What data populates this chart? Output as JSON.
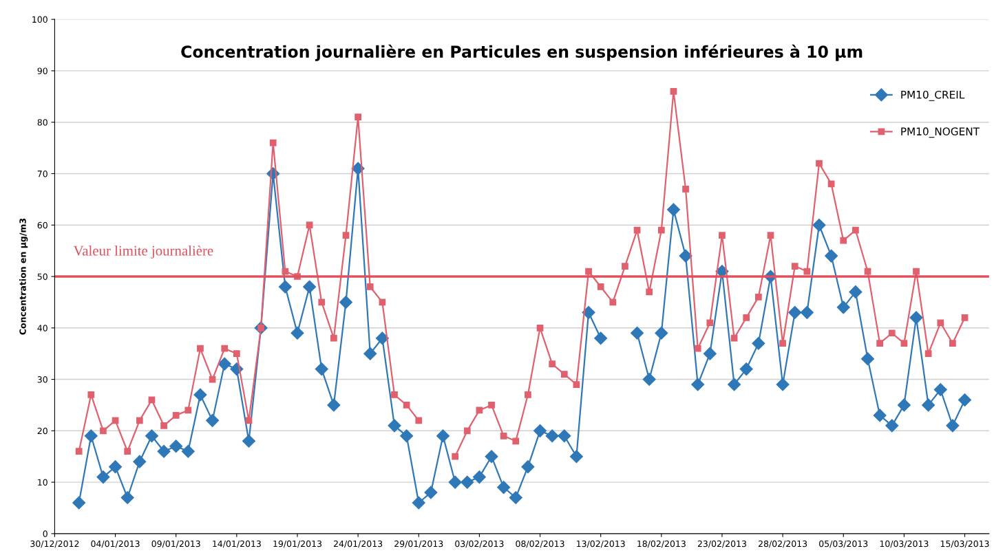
{
  "chart_data": {
    "type": "line",
    "title": "Concentration journalière en Particules en suspension inférieures à 10 µm",
    "ylabel": "Concentration en µg/m3",
    "x": [
      "2013-01-01",
      "2013-01-02",
      "2013-01-03",
      "2013-01-04",
      "2013-01-05",
      "2013-01-06",
      "2013-01-07",
      "2013-01-08",
      "2013-01-09",
      "2013-01-10",
      "2013-01-11",
      "2013-01-12",
      "2013-01-13",
      "2013-01-14",
      "2013-01-15",
      "2013-01-16",
      "2013-01-17",
      "2013-01-18",
      "2013-01-19",
      "2013-01-20",
      "2013-01-21",
      "2013-01-22",
      "2013-01-23",
      "2013-01-24",
      "2013-01-25",
      "2013-01-26",
      "2013-01-27",
      "2013-01-28",
      "2013-01-29",
      "2013-01-30",
      "2013-01-31",
      "2013-02-01",
      "2013-02-02",
      "2013-02-03",
      "2013-02-04",
      "2013-02-05",
      "2013-02-06",
      "2013-02-07",
      "2013-02-08",
      "2013-02-09",
      "2013-02-10",
      "2013-02-11",
      "2013-02-12",
      "2013-02-13",
      "2013-02-14",
      "2013-02-15",
      "2013-02-16",
      "2013-02-17",
      "2013-02-18",
      "2013-02-19",
      "2013-02-20",
      "2013-02-21",
      "2013-02-22",
      "2013-02-23",
      "2013-02-24",
      "2013-02-25",
      "2013-02-26",
      "2013-02-27",
      "2013-02-28",
      "2013-03-01",
      "2013-03-02",
      "2013-03-03",
      "2013-03-04",
      "2013-03-05",
      "2013-03-06",
      "2013-03-07",
      "2013-03-08",
      "2013-03-09",
      "2013-03-10",
      "2013-03-11",
      "2013-03-12",
      "2013-03-13",
      "2013-03-14",
      "2013-03-15"
    ],
    "series": [
      {
        "name": "PM10_CREIL",
        "color": "#2f78b8",
        "marker": "diamond",
        "values": [
          6,
          19,
          11,
          13,
          7,
          14,
          19,
          16,
          17,
          16,
          27,
          22,
          33,
          32,
          18,
          40,
          70,
          48,
          39,
          48,
          32,
          25,
          45,
          71,
          35,
          38,
          21,
          19,
          6,
          8,
          19,
          10,
          10,
          11,
          15,
          9,
          7,
          13,
          20,
          19,
          19,
          15,
          43,
          38,
          null,
          null,
          39,
          30,
          39,
          63,
          54,
          29,
          35,
          51,
          29,
          32,
          37,
          50,
          29,
          43,
          43,
          60,
          54,
          44,
          47,
          34,
          23,
          21,
          25,
          42,
          25,
          28,
          21,
          26
        ]
      },
      {
        "name": "PM10_NOGENT",
        "color": "#e0606e",
        "marker": "square",
        "values": [
          16,
          27,
          20,
          22,
          16,
          22,
          26,
          21,
          23,
          24,
          36,
          30,
          36,
          35,
          22,
          40,
          76,
          51,
          50,
          60,
          45,
          38,
          58,
          81,
          48,
          45,
          27,
          25,
          22,
          null,
          null,
          15,
          20,
          24,
          25,
          19,
          18,
          27,
          40,
          33,
          31,
          29,
          51,
          48,
          45,
          52,
          59,
          47,
          59,
          86,
          67,
          36,
          41,
          58,
          38,
          42,
          46,
          58,
          37,
          52,
          51,
          72,
          68,
          57,
          59,
          51,
          37,
          39,
          37,
          51,
          35,
          41,
          37,
          42
        ]
      }
    ],
    "xlim": [
      "2012-12-30",
      "2013-03-17"
    ],
    "xticks": [
      {
        "value": "2012-12-30",
        "label": "30/12/2012"
      },
      {
        "value": "2013-01-04",
        "label": "04/01/2013"
      },
      {
        "value": "2013-01-09",
        "label": "09/01/2013"
      },
      {
        "value": "2013-01-14",
        "label": "14/01/2013"
      },
      {
        "value": "2013-01-19",
        "label": "19/01/2013"
      },
      {
        "value": "2013-01-24",
        "label": "24/01/2013"
      },
      {
        "value": "2013-01-29",
        "label": "29/01/2013"
      },
      {
        "value": "2013-02-03",
        "label": "03/02/2013"
      },
      {
        "value": "2013-02-08",
        "label": "08/02/2013"
      },
      {
        "value": "2013-02-13",
        "label": "13/02/2013"
      },
      {
        "value": "2013-02-18",
        "label": "18/02/2013"
      },
      {
        "value": "2013-02-23",
        "label": "23/02/2013"
      },
      {
        "value": "2013-02-28",
        "label": "28/02/2013"
      },
      {
        "value": "2013-03-05",
        "label": "05/03/2013"
      },
      {
        "value": "2013-03-10",
        "label": "10/03/2013"
      },
      {
        "value": "2013-03-15",
        "label": "15/03/2013"
      }
    ],
    "ylim": [
      0,
      100
    ],
    "yticks": [
      0,
      10,
      20,
      30,
      40,
      50,
      60,
      70,
      80,
      90,
      100
    ],
    "grid": "y",
    "legend": "top right",
    "line_style": "solid",
    "ref_lines": [
      {
        "axis": "y",
        "value": 50,
        "label": "Valeur limite journalière",
        "color": "#e0505e",
        "line_style": "solid"
      }
    ]
  }
}
